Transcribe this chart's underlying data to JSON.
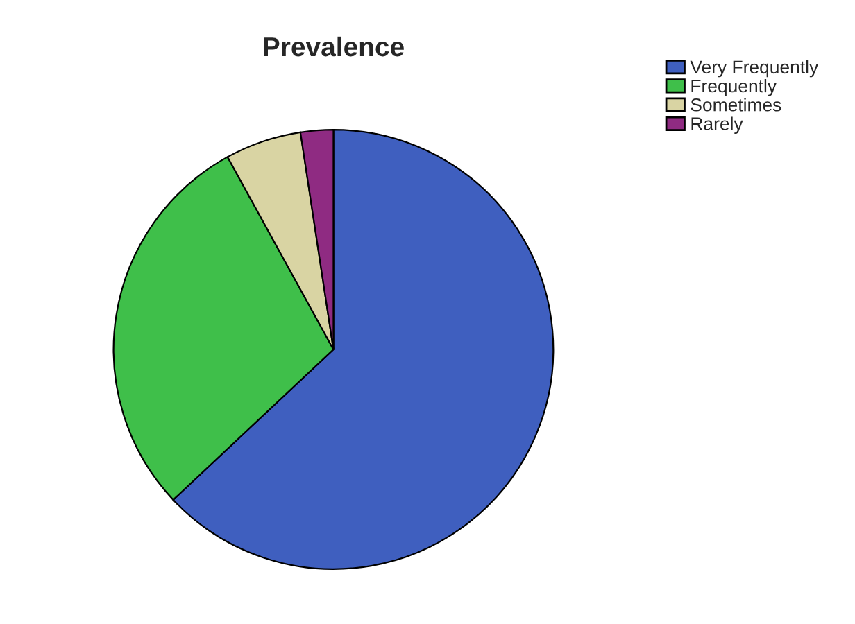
{
  "chart_data": {
    "type": "pie",
    "title": "Prevalence",
    "categories": [
      "Very Frequently",
      "Frequently",
      "Sometimes",
      "Rarely"
    ],
    "values": [
      63,
      29,
      5.6,
      2.4
    ],
    "colors": [
      "#3f5fbf",
      "#3fbf4a",
      "#d9d4a3",
      "#8f2b82"
    ],
    "legend": "top right"
  }
}
